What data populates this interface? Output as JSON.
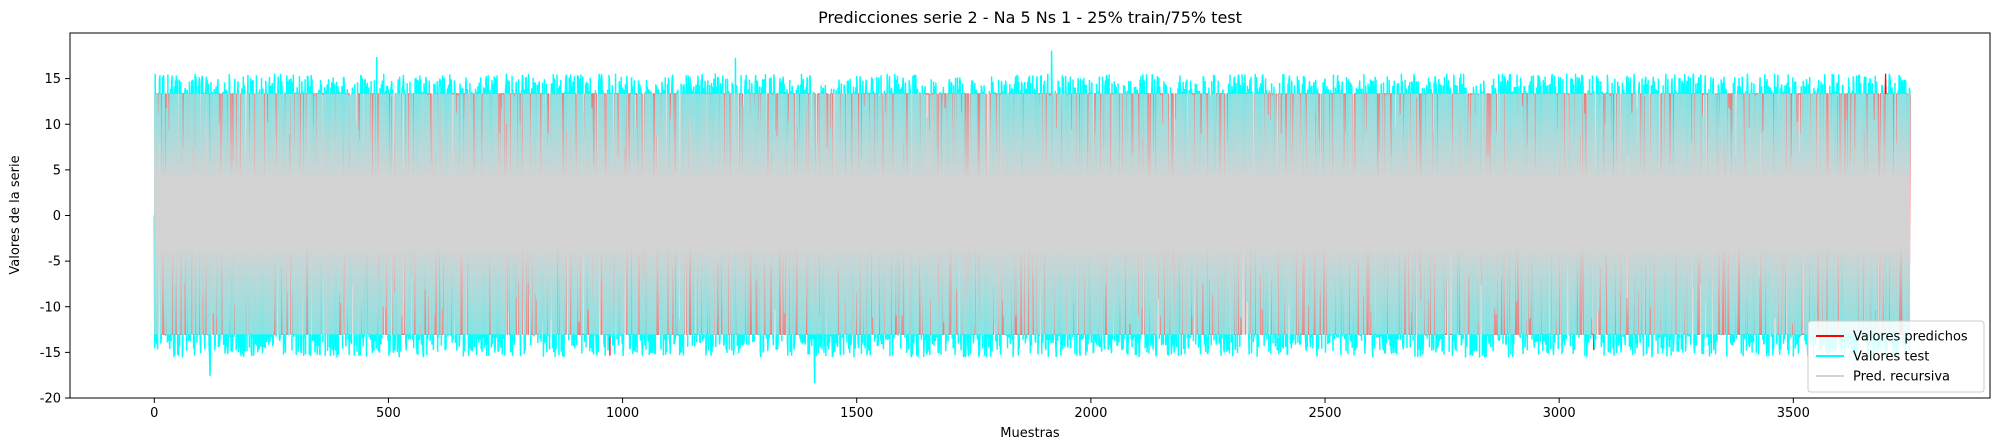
{
  "chart_data": {
    "type": "line",
    "title": "Predicciones serie 2 - Na 5 Ns 1 - 25% train/75% test",
    "xlabel": "Muestras",
    "ylabel": "Valores de la serie",
    "xlim": [
      -180,
      3920
    ],
    "ylim": [
      -20,
      20
    ],
    "x_ticks": [
      0,
      500,
      1000,
      1500,
      2000,
      2500,
      3000,
      3500
    ],
    "y_ticks": [
      -20,
      -15,
      -10,
      -5,
      0,
      5,
      10,
      15
    ],
    "grid": false,
    "legend_position": "lower-right",
    "x_range_samples": [
      0,
      3749
    ],
    "series": [
      {
        "name": "Valores predichos",
        "color": "#ff0000",
        "typical_range": [
          -13,
          13.3
        ],
        "extremes": [
          {
            "x": 3697,
            "y": 15.5
          },
          {
            "x": 3074,
            "y": -14.7
          },
          {
            "x": 973,
            "y": -15.3
          }
        ]
      },
      {
        "name": "Valores test",
        "color": "#00ffff",
        "typical_range": [
          -17.5,
          17
        ],
        "extremes": [
          {
            "x": 1916,
            "y": 18.0
          },
          {
            "x": 1410,
            "y": -18.3
          },
          {
            "x": 119,
            "y": -17.5
          },
          {
            "x": 475,
            "y": 17.3
          },
          {
            "x": 1241,
            "y": 17.2
          }
        ]
      },
      {
        "name": "Pred. recursiva",
        "color": "#d3d3d3",
        "typical_range": [
          -13,
          13.3
        ],
        "extremes": []
      }
    ]
  }
}
